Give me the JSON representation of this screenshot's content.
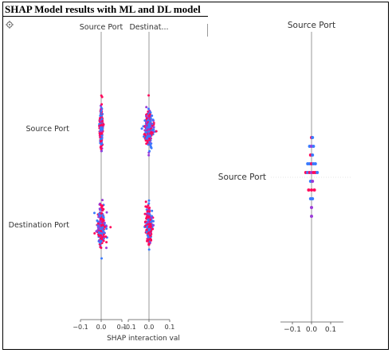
{
  "title": "SHAP Model results with ML and DL model",
  "icon": "settings-icon",
  "colors": {
    "low": "#3a7bff",
    "high": "#ff0a5c",
    "mid": "#9b3ad8",
    "axis": "#999999",
    "text": "#333333"
  },
  "chart_data": [
    {
      "type": "scatter",
      "subtype": "shap-interaction-beeswarm",
      "column_titles": [
        "Source Port",
        "Destinat..."
      ],
      "row_labels": [
        "Source Port",
        "Destination Port"
      ],
      "xlabel": "SHAP interaction val",
      "xlim": [
        -0.1,
        0.1
      ],
      "xticks": [
        {
          "value": -0.1,
          "label": "−0.1"
        },
        {
          "value": 0.0,
          "label": "0.0"
        },
        {
          "value": 0.1,
          "label": "0.1"
        }
      ],
      "panels": [
        {
          "row": 0,
          "col": 0,
          "spread": 0.004,
          "tail": 0.004
        },
        {
          "row": 0,
          "col": 1,
          "spread": 0.012,
          "tail": 0.008
        },
        {
          "row": 1,
          "col": 0,
          "spread": 0.01,
          "tail": 0.03
        },
        {
          "row": 1,
          "col": 1,
          "spread": 0.008,
          "tail": 0.012
        }
      ]
    },
    {
      "type": "scatter",
      "subtype": "shap-summary",
      "column_titles": [
        "Source Port"
      ],
      "row_labels": [
        "Source Port"
      ],
      "xlim": [
        -0.1,
        0.1
      ],
      "xticks": [
        {
          "value": -0.1,
          "label": "−0.1"
        },
        {
          "value": 0.0,
          "label": "0.0"
        },
        {
          "value": 0.1,
          "label": "0.1"
        }
      ],
      "points": [
        {
          "x": 0.0,
          "y": 0,
          "c": "high"
        },
        {
          "x": 0.005,
          "y": 0,
          "c": "low"
        },
        {
          "x": -0.01,
          "y": 1,
          "c": "low"
        },
        {
          "x": 0.0,
          "y": 1,
          "c": "mid"
        },
        {
          "x": 0.01,
          "y": 1,
          "c": "low"
        },
        {
          "x": -0.005,
          "y": 2,
          "c": "high"
        },
        {
          "x": 0.005,
          "y": 2,
          "c": "low"
        },
        {
          "x": -0.02,
          "y": 3,
          "c": "low"
        },
        {
          "x": -0.01,
          "y": 3,
          "c": "low"
        },
        {
          "x": 0.0,
          "y": 3,
          "c": "high"
        },
        {
          "x": 0.01,
          "y": 3,
          "c": "low"
        },
        {
          "x": 0.02,
          "y": 3,
          "c": "low"
        },
        {
          "x": -0.03,
          "y": 4,
          "c": "high"
        },
        {
          "x": -0.02,
          "y": 4,
          "c": "low"
        },
        {
          "x": -0.01,
          "y": 4,
          "c": "high"
        },
        {
          "x": 0.0,
          "y": 4,
          "c": "mid"
        },
        {
          "x": 0.01,
          "y": 4,
          "c": "high"
        },
        {
          "x": 0.02,
          "y": 4,
          "c": "high"
        },
        {
          "x": 0.03,
          "y": 4,
          "c": "low"
        },
        {
          "x": -0.005,
          "y": 5,
          "c": "low"
        },
        {
          "x": 0.005,
          "y": 5,
          "c": "mid"
        },
        {
          "x": -0.015,
          "y": 6,
          "c": "high"
        },
        {
          "x": 0.0,
          "y": 6,
          "c": "high"
        },
        {
          "x": 0.015,
          "y": 6,
          "c": "high"
        },
        {
          "x": -0.005,
          "y": 7,
          "c": "low"
        },
        {
          "x": 0.005,
          "y": 7,
          "c": "low"
        },
        {
          "x": 0.0,
          "y": 8,
          "c": "mid"
        },
        {
          "x": 0.0,
          "y": 9,
          "c": "mid"
        }
      ]
    }
  ]
}
